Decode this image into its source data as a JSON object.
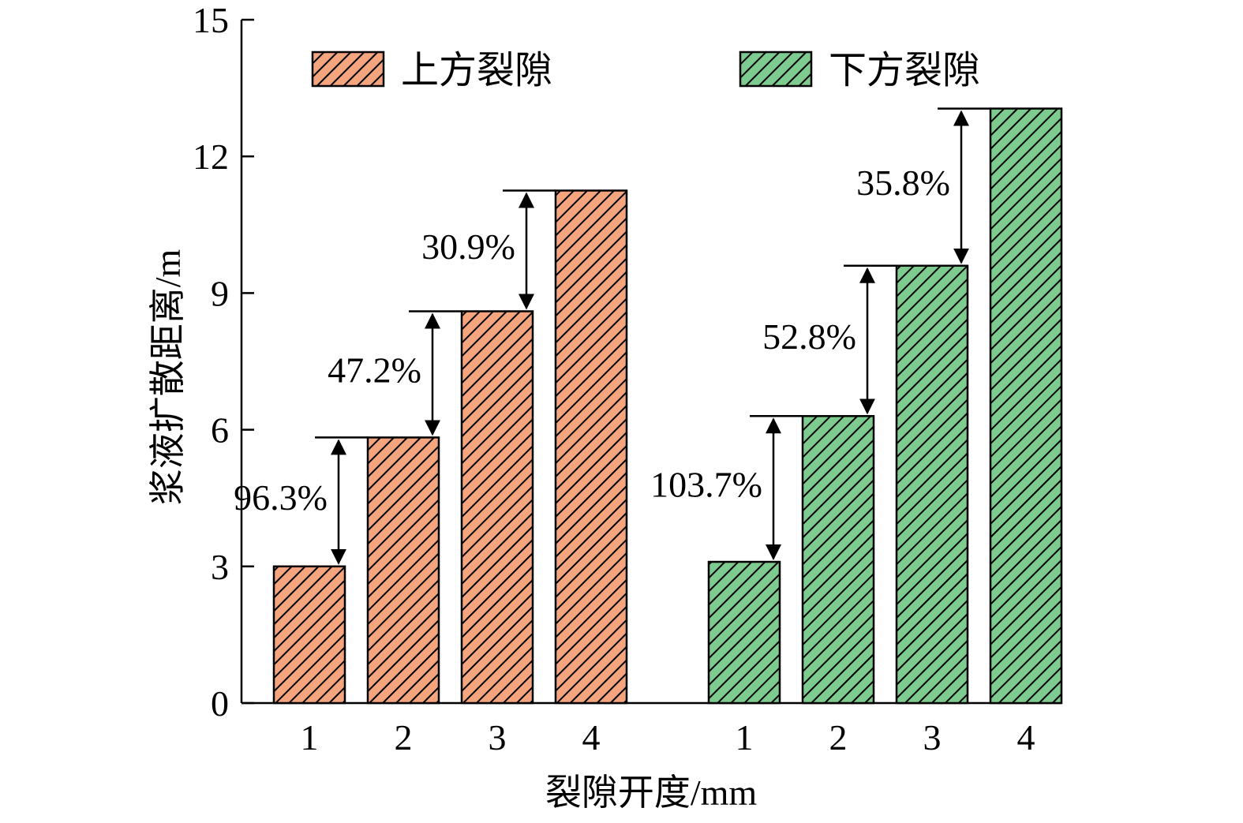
{
  "chart_data": {
    "type": "bar",
    "xlabel": "裂隙开度/mm",
    "ylabel": "浆液扩散距离/m",
    "ylim": [
      0,
      15
    ],
    "yticks": [
      0,
      3,
      6,
      9,
      12,
      15
    ],
    "grid": false,
    "legend_position": "top",
    "groups": [
      {
        "name": "上方裂隙",
        "color": "#F4A57E",
        "pattern": "diagonal-hatch",
        "categories": [
          "1",
          "2",
          "3",
          "4"
        ],
        "values": [
          3.0,
          5.83,
          8.6,
          11.25
        ],
        "annotations": [
          "96.3%",
          "47.2%",
          "30.9%"
        ]
      },
      {
        "name": "下方裂隙",
        "color": "#7DCB8E",
        "pattern": "diagonal-hatch",
        "categories": [
          "1",
          "2",
          "3",
          "4"
        ],
        "values": [
          3.1,
          6.3,
          9.6,
          13.05
        ],
        "annotations": [
          "103.7%",
          "52.8%",
          "35.8%"
        ]
      }
    ]
  }
}
